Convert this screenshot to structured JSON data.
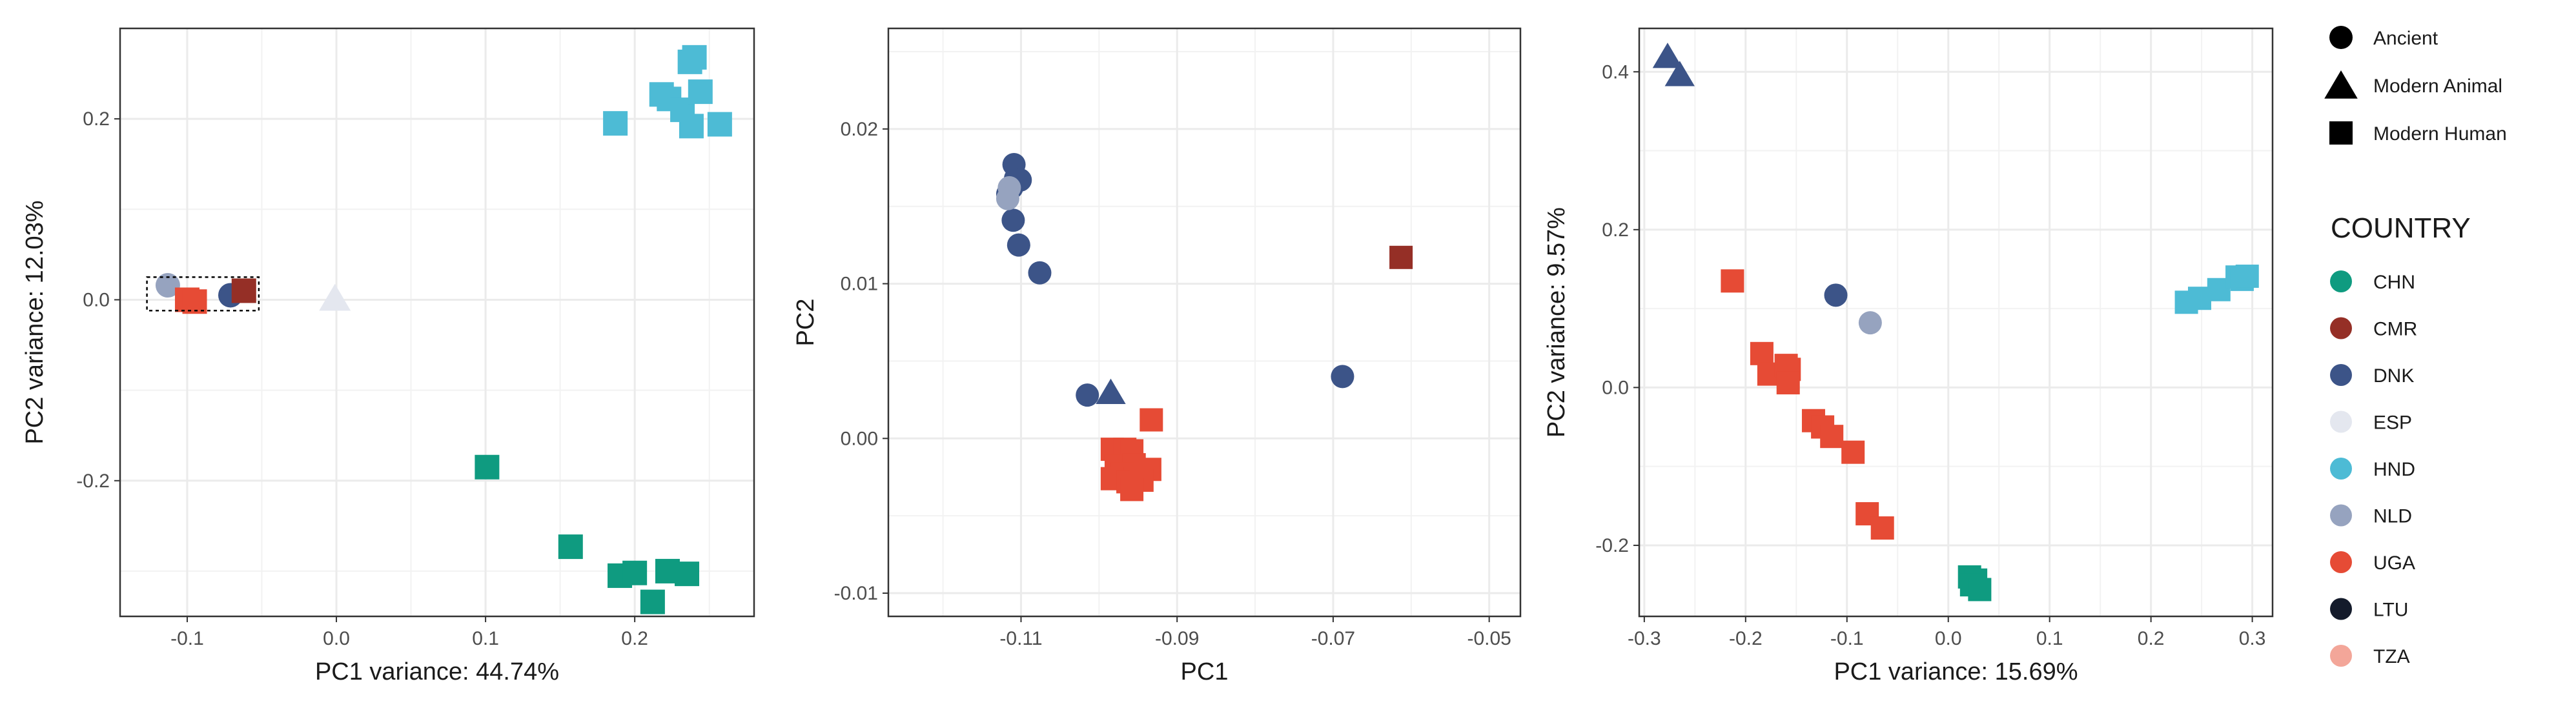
{
  "palette": {
    "CHN": "#0f9b80",
    "CMR": "#952f26",
    "DNK": "#3c5488",
    "ESP": "#e4e7ef",
    "HND": "#4dbbd5",
    "NLD": "#96a3bf",
    "UGA": "#e64b35",
    "LTU": "#141b2b",
    "TZA": "#f3a699"
  },
  "legend": {
    "shape_items": [
      {
        "label": "Ancient",
        "shape": "circle"
      },
      {
        "label": "Modern Animal",
        "shape": "triangle"
      },
      {
        "label": "Modern Human",
        "shape": "square"
      }
    ],
    "country_title": "COUNTRY",
    "country_items": [
      "CHN",
      "CMR",
      "DNK",
      "ESP",
      "HND",
      "NLD",
      "UGA",
      "LTU",
      "TZA"
    ]
  },
  "chart_data": [
    {
      "type": "scatter",
      "xlabel": "PC1 variance: 44.74%",
      "ylabel": "PC2 variance: 12.03%",
      "xlim": [
        -0.145,
        0.28
      ],
      "ylim": [
        -0.35,
        0.3
      ],
      "xticks": [
        -0.1,
        0.0,
        0.1,
        0.2
      ],
      "xtick_labels": [
        "-0.1",
        "0.0",
        "0.1",
        "0.2"
      ],
      "yticks": [
        -0.2,
        0.0,
        0.2
      ],
      "ytick_labels": [
        "-0.2",
        "0.0",
        "0.2"
      ],
      "highlight_box": {
        "x0": -0.127,
        "x1": -0.052,
        "y0": -0.012,
        "y1": 0.025
      },
      "points": [
        {
          "x": -0.113,
          "y": 0.016,
          "country": "NLD",
          "shape": "circle"
        },
        {
          "x": -0.071,
          "y": 0.005,
          "country": "DNK",
          "shape": "circle"
        },
        {
          "x": -0.062,
          "y": 0.01,
          "country": "CMR",
          "shape": "square"
        },
        {
          "x": -0.1,
          "y": 0.0,
          "country": "UGA",
          "shape": "square"
        },
        {
          "x": -0.095,
          "y": -0.002,
          "country": "UGA",
          "shape": "square"
        },
        {
          "x": -0.001,
          "y": 0.002,
          "country": "ESP",
          "shape": "triangle"
        },
        {
          "x": 0.187,
          "y": 0.195,
          "country": "HND",
          "shape": "square"
        },
        {
          "x": 0.218,
          "y": 0.227,
          "country": "HND",
          "shape": "square"
        },
        {
          "x": 0.223,
          "y": 0.222,
          "country": "HND",
          "shape": "square"
        },
        {
          "x": 0.232,
          "y": 0.21,
          "country": "HND",
          "shape": "square"
        },
        {
          "x": 0.237,
          "y": 0.263,
          "country": "HND",
          "shape": "square"
        },
        {
          "x": 0.24,
          "y": 0.268,
          "country": "HND",
          "shape": "square"
        },
        {
          "x": 0.244,
          "y": 0.23,
          "country": "HND",
          "shape": "square"
        },
        {
          "x": 0.238,
          "y": 0.192,
          "country": "HND",
          "shape": "square"
        },
        {
          "x": 0.257,
          "y": 0.194,
          "country": "HND",
          "shape": "square"
        },
        {
          "x": 0.101,
          "y": -0.185,
          "country": "CHN",
          "shape": "square"
        },
        {
          "x": 0.157,
          "y": -0.273,
          "country": "CHN",
          "shape": "square"
        },
        {
          "x": 0.19,
          "y": -0.305,
          "country": "CHN",
          "shape": "square"
        },
        {
          "x": 0.2,
          "y": -0.302,
          "country": "CHN",
          "shape": "square"
        },
        {
          "x": 0.212,
          "y": -0.334,
          "country": "CHN",
          "shape": "square"
        },
        {
          "x": 0.222,
          "y": -0.3,
          "country": "CHN",
          "shape": "square"
        },
        {
          "x": 0.235,
          "y": -0.303,
          "country": "CHN",
          "shape": "square"
        }
      ]
    },
    {
      "type": "scatter",
      "xlabel": "PC1",
      "ylabel": "PC2",
      "xlim": [
        -0.127,
        -0.046
      ],
      "ylim": [
        -0.0115,
        0.0265
      ],
      "xticks": [
        -0.11,
        -0.09,
        -0.07,
        -0.05
      ],
      "xtick_labels": [
        "-0.11",
        "-0.09",
        "-0.07",
        "-0.05"
      ],
      "yticks": [
        -0.01,
        0.0,
        0.01,
        0.02
      ],
      "ytick_labels": [
        "-0.01",
        "0.00",
        "0.01",
        "0.02"
      ],
      "points": [
        {
          "x": -0.1109,
          "y": 0.0177,
          "country": "DNK",
          "shape": "circle"
        },
        {
          "x": -0.1107,
          "y": 0.0168,
          "country": "DNK",
          "shape": "circle"
        },
        {
          "x": -0.1112,
          "y": 0.0162,
          "country": "DNK",
          "shape": "circle"
        },
        {
          "x": -0.1117,
          "y": 0.0158,
          "country": "DNK",
          "shape": "circle"
        },
        {
          "x": -0.1101,
          "y": 0.0167,
          "country": "DNK",
          "shape": "circle"
        },
        {
          "x": -0.111,
          "y": 0.0141,
          "country": "DNK",
          "shape": "circle"
        },
        {
          "x": -0.1103,
          "y": 0.0125,
          "country": "DNK",
          "shape": "circle"
        },
        {
          "x": -0.1076,
          "y": 0.0107,
          "country": "DNK",
          "shape": "circle"
        },
        {
          "x": -0.1115,
          "y": 0.0162,
          "country": "NLD",
          "shape": "circle"
        },
        {
          "x": -0.1117,
          "y": 0.0155,
          "country": "NLD",
          "shape": "circle"
        },
        {
          "x": -0.1015,
          "y": 0.0028,
          "country": "DNK",
          "shape": "circle"
        },
        {
          "x": -0.0985,
          "y": 0.003,
          "country": "DNK",
          "shape": "triangle"
        },
        {
          "x": -0.0688,
          "y": 0.004,
          "country": "DNK",
          "shape": "circle"
        },
        {
          "x": -0.0613,
          "y": 0.0117,
          "country": "CMR",
          "shape": "square"
        },
        {
          "x": -0.0933,
          "y": 0.0012,
          "country": "UGA",
          "shape": "square"
        },
        {
          "x": -0.0983,
          "y": -0.0007,
          "country": "UGA",
          "shape": "square"
        },
        {
          "x": -0.0967,
          "y": -0.0007,
          "country": "UGA",
          "shape": "square"
        },
        {
          "x": -0.0958,
          "y": -0.0008,
          "country": "UGA",
          "shape": "square"
        },
        {
          "x": -0.0978,
          "y": -0.0018,
          "country": "UGA",
          "shape": "square"
        },
        {
          "x": -0.0955,
          "y": -0.0017,
          "country": "UGA",
          "shape": "square"
        },
        {
          "x": -0.0935,
          "y": -0.002,
          "country": "UGA",
          "shape": "square"
        },
        {
          "x": -0.097,
          "y": -0.0023,
          "country": "UGA",
          "shape": "square"
        },
        {
          "x": -0.0983,
          "y": -0.0026,
          "country": "UGA",
          "shape": "square"
        },
        {
          "x": -0.0963,
          "y": -0.0028,
          "country": "UGA",
          "shape": "square"
        },
        {
          "x": -0.0945,
          "y": -0.0027,
          "country": "UGA",
          "shape": "square"
        },
        {
          "x": -0.0958,
          "y": -0.0033,
          "country": "UGA",
          "shape": "square"
        }
      ]
    },
    {
      "type": "scatter",
      "xlabel": "PC1 variance: 15.69%",
      "ylabel": "PC2 variance: 9.57%",
      "xlim": [
        -0.305,
        0.32
      ],
      "ylim": [
        -0.29,
        0.455
      ],
      "xticks": [
        -0.3,
        -0.2,
        -0.1,
        0.0,
        0.1,
        0.2,
        0.3
      ],
      "xtick_labels": [
        "-0.3",
        "-0.2",
        "-0.1",
        "0.0",
        "0.1",
        "0.2",
        "0.3"
      ],
      "yticks": [
        -0.2,
        0.0,
        0.2,
        0.4
      ],
      "ytick_labels": [
        "-0.2",
        "0.0",
        "0.2",
        "0.4"
      ],
      "points": [
        {
          "x": -0.277,
          "y": 0.42,
          "country": "DNK",
          "shape": "triangle"
        },
        {
          "x": -0.265,
          "y": 0.397,
          "country": "DNK",
          "shape": "triangle"
        },
        {
          "x": -0.213,
          "y": 0.135,
          "country": "UGA",
          "shape": "square"
        },
        {
          "x": -0.184,
          "y": 0.043,
          "country": "UGA",
          "shape": "square"
        },
        {
          "x": -0.177,
          "y": 0.017,
          "country": "UGA",
          "shape": "square"
        },
        {
          "x": -0.16,
          "y": 0.028,
          "country": "UGA",
          "shape": "square"
        },
        {
          "x": -0.157,
          "y": 0.023,
          "country": "UGA",
          "shape": "square"
        },
        {
          "x": -0.158,
          "y": 0.006,
          "country": "UGA",
          "shape": "square"
        },
        {
          "x": -0.133,
          "y": -0.042,
          "country": "UGA",
          "shape": "square"
        },
        {
          "x": -0.124,
          "y": -0.05,
          "country": "UGA",
          "shape": "square"
        },
        {
          "x": -0.115,
          "y": -0.062,
          "country": "UGA",
          "shape": "square"
        },
        {
          "x": -0.094,
          "y": -0.082,
          "country": "UGA",
          "shape": "square"
        },
        {
          "x": -0.08,
          "y": -0.16,
          "country": "UGA",
          "shape": "square"
        },
        {
          "x": -0.065,
          "y": -0.178,
          "country": "UGA",
          "shape": "square"
        },
        {
          "x": -0.111,
          "y": 0.117,
          "country": "DNK",
          "shape": "circle"
        },
        {
          "x": -0.077,
          "y": 0.082,
          "country": "NLD",
          "shape": "circle"
        },
        {
          "x": 0.021,
          "y": -0.24,
          "country": "CHN",
          "shape": "square"
        },
        {
          "x": 0.027,
          "y": -0.244,
          "country": "CHN",
          "shape": "square"
        },
        {
          "x": 0.023,
          "y": -0.25,
          "country": "CHN",
          "shape": "square"
        },
        {
          "x": 0.031,
          "y": -0.256,
          "country": "CHN",
          "shape": "square"
        },
        {
          "x": 0.235,
          "y": 0.108,
          "country": "HND",
          "shape": "square"
        },
        {
          "x": 0.248,
          "y": 0.113,
          "country": "HND",
          "shape": "square"
        },
        {
          "x": 0.267,
          "y": 0.124,
          "country": "HND",
          "shape": "square"
        },
        {
          "x": 0.285,
          "y": 0.14,
          "country": "HND",
          "shape": "square"
        },
        {
          "x": 0.29,
          "y": 0.137,
          "country": "HND",
          "shape": "square"
        },
        {
          "x": 0.295,
          "y": 0.141,
          "country": "HND",
          "shape": "square"
        }
      ]
    }
  ]
}
